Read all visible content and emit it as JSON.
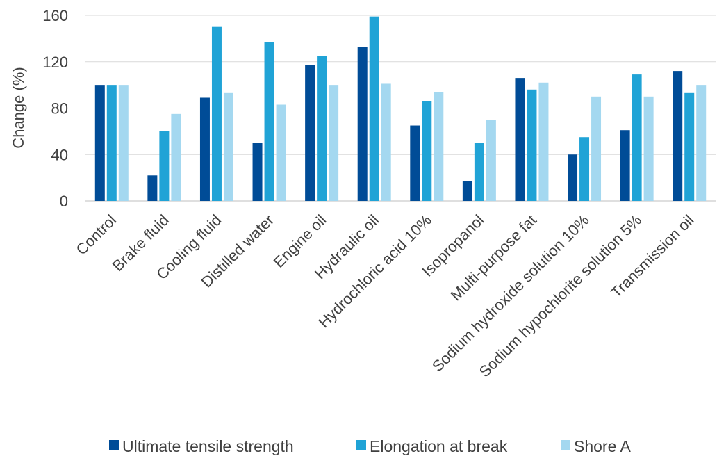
{
  "chart_data": {
    "type": "bar",
    "title": "",
    "xlabel": "",
    "ylabel": "Change (%)",
    "ylim": [
      0,
      160
    ],
    "yticks": [
      0,
      40,
      80,
      120,
      160
    ],
    "grid": "horizontal",
    "legend_position": "bottom",
    "categories": [
      "Control",
      "Brake fluid",
      "Cooling fluid",
      "Distilled water",
      "Engine oil",
      "Hydraulic oil",
      "Hydrochloric acid 10%",
      "Isopropanol",
      "Multi-purpose fat",
      "Sodium hydroxide solution 10%",
      "Sodium hypochlorite solution 5%",
      "Transmission oil"
    ],
    "series": [
      {
        "name": "Ultimate tensile strength",
        "color": "#004C97",
        "values": [
          100,
          22,
          89,
          50,
          117,
          133,
          65,
          17,
          106,
          40,
          61,
          112
        ]
      },
      {
        "name": "Elongation at break",
        "color": "#20A3D6",
        "values": [
          100,
          60,
          150,
          137,
          125,
          159,
          86,
          50,
          96,
          55,
          109,
          93
        ]
      },
      {
        "name": "Shore A",
        "color": "#A4D8F0",
        "values": [
          100,
          75,
          93,
          83,
          100,
          101,
          94,
          70,
          102,
          90,
          90,
          100
        ]
      }
    ]
  }
}
